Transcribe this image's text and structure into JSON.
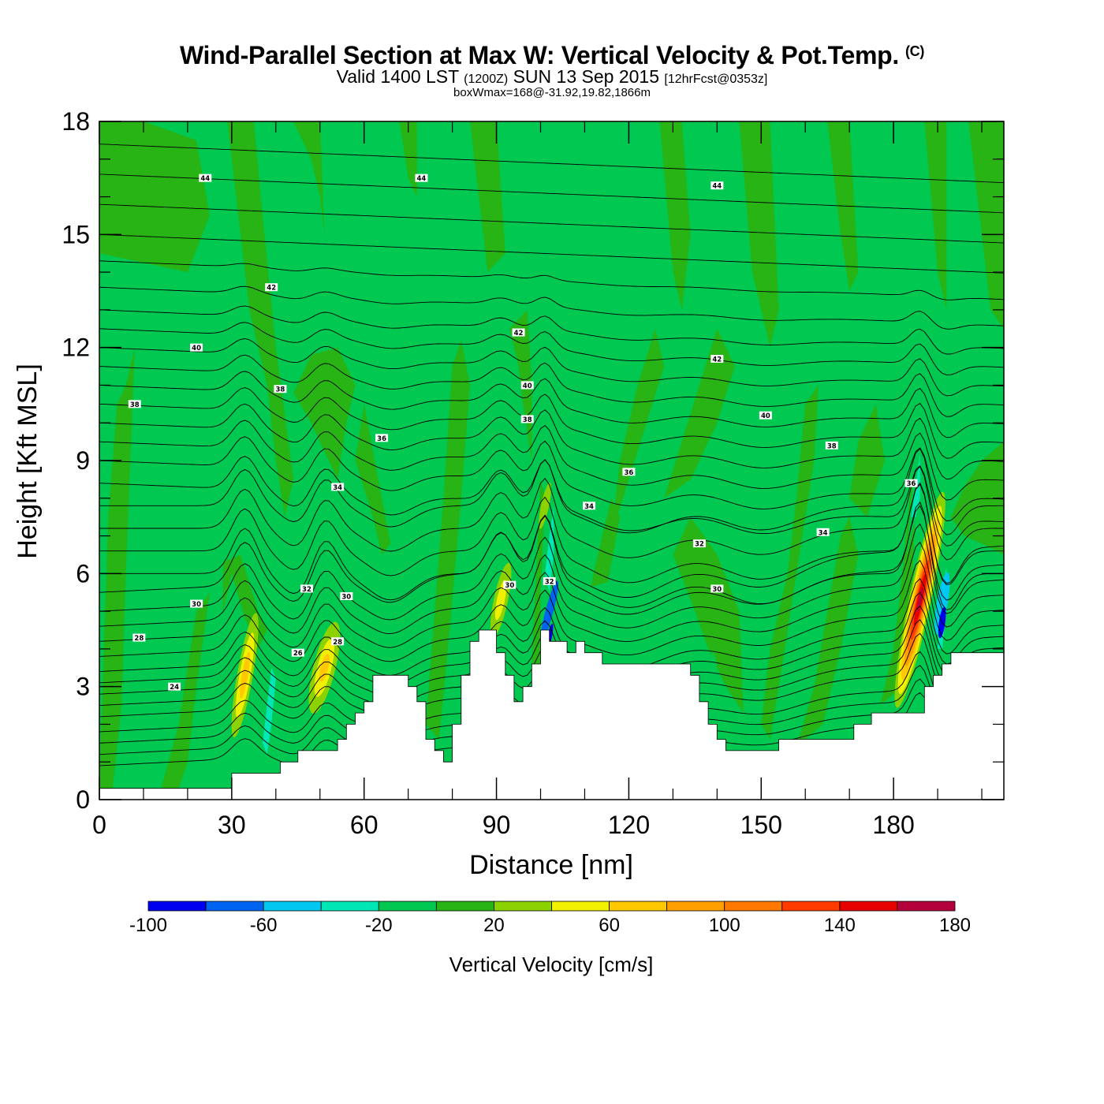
{
  "header": {
    "title": "Wind-Parallel Section at Max W: Vertical Velocity & Pot.Temp.",
    "copyright_mark": "(C)",
    "valid_prefix": "Valid 1400 LST",
    "valid_utc": "(1200Z)",
    "valid_date": "SUN 13 Sep 2015",
    "forecast": "[12hrFcst@0353z]",
    "note": "boxWmax=168@-31.92,19.82,1866m"
  },
  "colors": {
    "background_field": "#00c850",
    "frame": "#000000",
    "terrain": "#ffffff",
    "contour": "#000000"
  },
  "chart_data": {
    "type": "heatmap",
    "title": "Wind-Parallel Section at Max W: Vertical Velocity & Pot.Temp.",
    "xlabel": "Distance [nm]",
    "ylabel": "Height [Kft MSL]",
    "xlim": [
      0,
      205
    ],
    "ylim": [
      0,
      18
    ],
    "x_ticks": [
      "0",
      "30",
      "60",
      "90",
      "120",
      "150",
      "180"
    ],
    "y_ticks": [
      "0",
      "3",
      "6",
      "9",
      "12",
      "15",
      "18"
    ],
    "colorbar": {
      "title": "Vertical Velocity [cm/s]",
      "levels": [
        -100,
        -80,
        -60,
        -40,
        -20,
        0,
        20,
        40,
        60,
        80,
        100,
        120,
        140,
        160,
        180
      ],
      "tick_labels": [
        "-100",
        "-60",
        "-20",
        "20",
        "60",
        "100",
        "140",
        "180"
      ],
      "colors": [
        "#0000f0",
        "#0064f0",
        "#00c8f0",
        "#00e6b4",
        "#00c850",
        "#28b414",
        "#8cd200",
        "#f0f000",
        "#ffc800",
        "#ffa000",
        "#ff7800",
        "#ff3c00",
        "#e60000",
        "#b4003c"
      ]
    },
    "terrain_profile": {
      "x": [
        0,
        30,
        30,
        41,
        41,
        45,
        45,
        54,
        54,
        56,
        56,
        58,
        58,
        60,
        60,
        62,
        62,
        70,
        70,
        72,
        72,
        74,
        74,
        76,
        76,
        78,
        78,
        80,
        80,
        82,
        82,
        84,
        84,
        86,
        86,
        90,
        90,
        92,
        92,
        94,
        94,
        96,
        96,
        98,
        98,
        100,
        100,
        102,
        102,
        106,
        106,
        108,
        108,
        110,
        110,
        114,
        114,
        134,
        134,
        136,
        136,
        138,
        138,
        140,
        140,
        142,
        142,
        154,
        154,
        171,
        171,
        175,
        175,
        187,
        187,
        189,
        189,
        191,
        191,
        193,
        193,
        205
      ],
      "height_kft": [
        0.3,
        0.3,
        0.7,
        0.7,
        1.0,
        1.0,
        1.3,
        1.3,
        1.6,
        1.6,
        2.0,
        2.0,
        2.3,
        2.3,
        2.6,
        2.6,
        3.3,
        3.3,
        3.0,
        3.0,
        2.6,
        2.6,
        1.6,
        1.6,
        1.3,
        1.3,
        1.0,
        1.0,
        2.0,
        2.0,
        3.3,
        3.3,
        4.2,
        4.2,
        4.5,
        4.5,
        3.9,
        3.9,
        3.3,
        3.3,
        2.6,
        2.6,
        3.0,
        3.0,
        3.6,
        3.6,
        4.5,
        4.5,
        4.2,
        4.2,
        3.9,
        3.9,
        4.2,
        4.2,
        3.9,
        3.9,
        3.6,
        3.6,
        3.3,
        3.3,
        2.6,
        2.6,
        2.0,
        2.0,
        1.6,
        1.6,
        1.3,
        1.3,
        1.6,
        1.6,
        2.0,
        2.0,
        2.3,
        2.3,
        3.0,
        3.0,
        3.3,
        3.3,
        3.6,
        3.6,
        3.9,
        3.9
      ]
    },
    "theta_contours": {
      "units": "C",
      "levels": [
        24,
        26,
        28,
        30,
        32,
        34,
        36,
        38,
        40,
        42,
        44
      ],
      "labels": [
        {
          "text": "44",
          "x": 24,
          "y": 16.5
        },
        {
          "text": "44",
          "x": 73,
          "y": 16.5
        },
        {
          "text": "44",
          "x": 140,
          "y": 16.3
        },
        {
          "text": "42",
          "x": 39,
          "y": 13.6
        },
        {
          "text": "42",
          "x": 95,
          "y": 12.4
        },
        {
          "text": "42",
          "x": 140,
          "y": 11.7
        },
        {
          "text": "40",
          "x": 22,
          "y": 12.0
        },
        {
          "text": "40",
          "x": 97,
          "y": 11.0
        },
        {
          "text": "40",
          "x": 151,
          "y": 10.2
        },
        {
          "text": "38",
          "x": 8,
          "y": 10.5
        },
        {
          "text": "38",
          "x": 41,
          "y": 10.9
        },
        {
          "text": "38",
          "x": 97,
          "y": 10.1
        },
        {
          "text": "38",
          "x": 166,
          "y": 9.4
        },
        {
          "text": "36",
          "x": 64,
          "y": 9.6
        },
        {
          "text": "36",
          "x": 120,
          "y": 8.7
        },
        {
          "text": "36",
          "x": 184,
          "y": 8.4
        },
        {
          "text": "34",
          "x": 54,
          "y": 8.3
        },
        {
          "text": "34",
          "x": 111,
          "y": 7.8
        },
        {
          "text": "34",
          "x": 164,
          "y": 7.1
        },
        {
          "text": "32",
          "x": 47,
          "y": 5.6
        },
        {
          "text": "32",
          "x": 136,
          "y": 6.8
        },
        {
          "text": "32",
          "x": 102,
          "y": 5.8
        },
        {
          "text": "30",
          "x": 22,
          "y": 5.2
        },
        {
          "text": "30",
          "x": 56,
          "y": 5.4
        },
        {
          "text": "30",
          "x": 93,
          "y": 5.7
        },
        {
          "text": "30",
          "x": 140,
          "y": 5.6
        },
        {
          "text": "28",
          "x": 9,
          "y": 4.3
        },
        {
          "text": "28",
          "x": 54,
          "y": 4.2
        },
        {
          "text": "26",
          "x": 45,
          "y": 3.9
        },
        {
          "text": "24",
          "x": 17,
          "y": 3.0
        }
      ]
    },
    "velocity_features": [
      {
        "kind": "updraft",
        "x_center": 33,
        "peak_height_kft": 3.5,
        "max_cm_s": 60
      },
      {
        "kind": "updraft",
        "x_center": 51,
        "peak_height_kft": 3.3,
        "max_cm_s": 60
      },
      {
        "kind": "updraft",
        "x_center": 91,
        "peak_height_kft": 5.5,
        "max_cm_s": 60
      },
      {
        "kind": "updraft",
        "x_center": 101,
        "peak_height_kft": 7.8,
        "max_cm_s": 40
      },
      {
        "kind": "downdraft",
        "x_center": 102,
        "peak_height_kft": 5.0,
        "max_cm_s": -80
      },
      {
        "kind": "updraft",
        "x_center": 186,
        "peak_height_kft": 5.6,
        "max_cm_s": 168
      },
      {
        "kind": "downdraft",
        "x_center": 191,
        "peak_height_kft": 4.7,
        "max_cm_s": -100
      }
    ]
  }
}
